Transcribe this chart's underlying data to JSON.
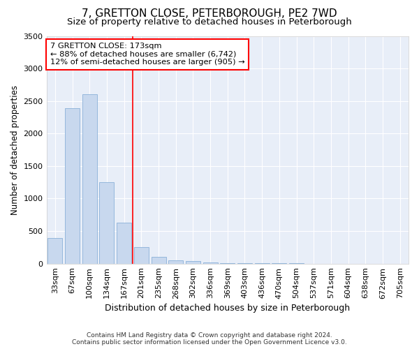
{
  "title": "7, GRETTON CLOSE, PETERBOROUGH, PE2 7WD",
  "subtitle": "Size of property relative to detached houses in Peterborough",
  "xlabel": "Distribution of detached houses by size in Peterborough",
  "ylabel": "Number of detached properties",
  "categories": [
    "33sqm",
    "67sqm",
    "100sqm",
    "134sqm",
    "167sqm",
    "201sqm",
    "235sqm",
    "268sqm",
    "302sqm",
    "336sqm",
    "369sqm",
    "403sqm",
    "436sqm",
    "470sqm",
    "504sqm",
    "537sqm",
    "571sqm",
    "604sqm",
    "638sqm",
    "672sqm",
    "705sqm"
  ],
  "values": [
    390,
    2390,
    2600,
    1250,
    630,
    255,
    100,
    55,
    35,
    20,
    12,
    8,
    5,
    4,
    3,
    2,
    2,
    1,
    1,
    1,
    0
  ],
  "bar_facecolor": "#c8d8ee",
  "bar_edgecolor": "#8ab0d8",
  "ylim": [
    0,
    3500
  ],
  "yticks": [
    0,
    500,
    1000,
    1500,
    2000,
    2500,
    3000,
    3500
  ],
  "red_line_x": 4.5,
  "annotation_line1": "7 GRETTON CLOSE: 173sqm",
  "annotation_line2": "← 88% of detached houses are smaller (6,742)",
  "annotation_line3": "12% of semi-detached houses are larger (905) →",
  "footer_line1": "Contains HM Land Registry data © Crown copyright and database right 2024.",
  "footer_line2": "Contains public sector information licensed under the Open Government Licence v3.0.",
  "plot_bg_color": "#e8eef8",
  "fig_bg_color": "#ffffff",
  "grid_color": "#ffffff",
  "title_fontsize": 11,
  "subtitle_fontsize": 9.5,
  "xlabel_fontsize": 9,
  "ylabel_fontsize": 8.5,
  "tick_fontsize": 8
}
